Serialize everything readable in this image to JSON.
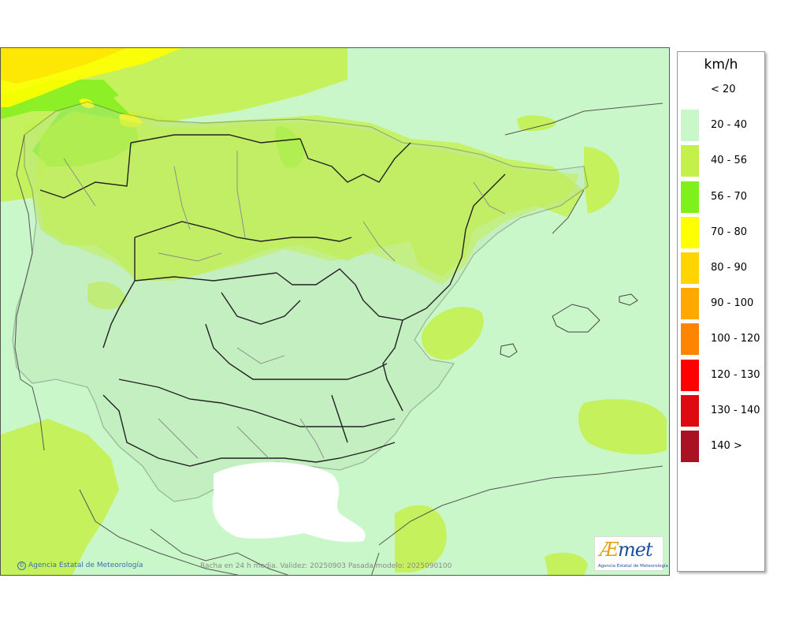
{
  "legend": {
    "unit": "km/h",
    "items": [
      {
        "label": "< 20",
        "color": "#ffffff"
      },
      {
        "label": "20 - 40",
        "color": "#c9f7c9"
      },
      {
        "label": "40 - 56",
        "color": "#c4f04a"
      },
      {
        "label": "56 - 70",
        "color": "#80f01a"
      },
      {
        "label": "70 - 80",
        "color": "#ffff00"
      },
      {
        "label": "80 - 90",
        "color": "#ffd400"
      },
      {
        "label": "90 - 100",
        "color": "#ffa800"
      },
      {
        "label": "100 - 120",
        "color": "#ff8400"
      },
      {
        "label": "120 - 130",
        "color": "#ff0000"
      },
      {
        "label": "130 - 140",
        "color": "#dd0a12"
      },
      {
        "label": "140 >",
        "color": "#aa1122"
      }
    ]
  },
  "footer": {
    "copyright": "Agencia Estatal de Meteorología",
    "validity": "Racha en 24 h media. Validez: 20250903 Pasada modelo: 2025090100"
  },
  "logo": {
    "name": "AEmet",
    "subtitle": "Agencia Estatal de Meteorología"
  }
}
